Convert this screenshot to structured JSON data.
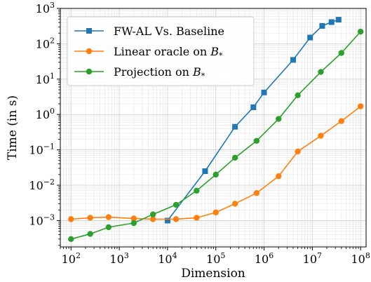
{
  "chart_data": {
    "type": "line",
    "xscale": "log",
    "yscale": "log",
    "xlim": [
      60,
      130000000
    ],
    "ylim": [
      0.00018,
      1000
    ],
    "xlabel": "Dimension",
    "ylabel": "Time (in s)",
    "xticks": [
      {
        "value": 100,
        "base": "10",
        "exp": "2"
      },
      {
        "value": 1000,
        "base": "10",
        "exp": "3"
      },
      {
        "value": 10000,
        "base": "10",
        "exp": "4"
      },
      {
        "value": 100000,
        "base": "10",
        "exp": "5"
      },
      {
        "value": 1000000,
        "base": "10",
        "exp": "6"
      },
      {
        "value": 10000000,
        "base": "10",
        "exp": "7"
      },
      {
        "value": 100000000,
        "base": "10",
        "exp": "8"
      }
    ],
    "yticks": [
      {
        "value": 0.001,
        "base": "10",
        "exp": "−3"
      },
      {
        "value": 0.01,
        "base": "10",
        "exp": "−2"
      },
      {
        "value": 0.1,
        "base": "10",
        "exp": "−1"
      },
      {
        "value": 1,
        "base": "10",
        "exp": "0"
      },
      {
        "value": 10,
        "base": "10",
        "exp": "1"
      },
      {
        "value": 100,
        "base": "10",
        "exp": "2"
      },
      {
        "value": 1000,
        "base": "10",
        "exp": "3"
      }
    ],
    "grid": true,
    "legend_position": "top-left",
    "series": [
      {
        "name": "FW-AL Vs. Baseline",
        "marker": "square",
        "color": "#1f77b4",
        "x": [
          10000,
          60000,
          250000,
          600000,
          1000000,
          4000000,
          9000000,
          16000000,
          25000000,
          35000000
        ],
        "y": [
          0.001,
          0.025,
          0.45,
          1.6,
          4.2,
          35,
          150,
          320,
          410,
          480
        ]
      },
      {
        "name": "Linear oracle on ",
        "name_math": "B",
        "name_sub": "*",
        "marker": "circle",
        "color": "#ff7f0e",
        "x": [
          100,
          250,
          600,
          2000,
          5000,
          15000,
          40000,
          100000,
          250000,
          700000,
          2000000,
          5000000,
          15000000,
          40000000,
          100000000
        ],
        "y": [
          0.0011,
          0.0012,
          0.00125,
          0.00115,
          0.0011,
          0.0011,
          0.0012,
          0.0017,
          0.003,
          0.006,
          0.018,
          0.09,
          0.25,
          0.65,
          1.7
        ]
      },
      {
        "name": "Projection on ",
        "name_math": "B",
        "name_sub": "*",
        "marker": "circle",
        "color": "#2ca02c",
        "x": [
          100,
          250,
          600,
          2000,
          5000,
          15000,
          40000,
          100000,
          250000,
          700000,
          2000000,
          5000000,
          15000000,
          40000000,
          100000000
        ],
        "y": [
          0.0003,
          0.00042,
          0.00065,
          0.00085,
          0.0015,
          0.0028,
          0.007,
          0.02,
          0.06,
          0.18,
          0.75,
          3.5,
          16,
          55,
          220
        ]
      }
    ]
  }
}
